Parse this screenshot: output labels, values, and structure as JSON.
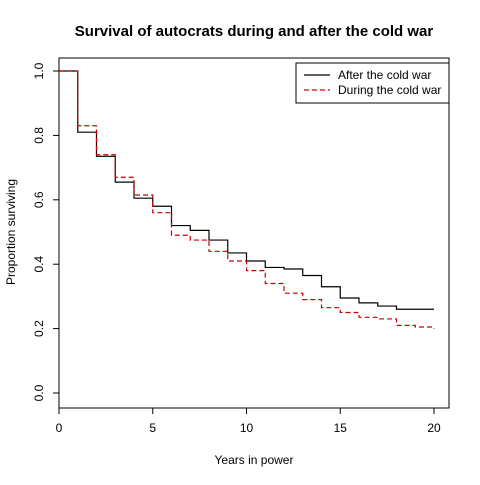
{
  "chart_data": {
    "type": "line",
    "title": "Survival of autocrats during and after the cold war",
    "xlabel": "Years in power",
    "ylabel": "Proportion surviving",
    "xlim": [
      0,
      20
    ],
    "ylim": [
      0,
      1
    ],
    "x_ticks": [
      0,
      5,
      10,
      15,
      20
    ],
    "y_ticks": [
      0.0,
      0.2,
      0.4,
      0.6,
      0.8,
      1.0
    ],
    "x_tick_labels": [
      "0",
      "5",
      "10",
      "15",
      "20"
    ],
    "y_tick_labels": [
      "0.0",
      "0.2",
      "0.4",
      "0.6",
      "0.8",
      "1.0"
    ],
    "grid": false,
    "legend_position": "top-right",
    "step": true,
    "series": [
      {
        "name": "After the cold war",
        "color": "#000000",
        "dash": "solid",
        "x": [
          0,
          1,
          2,
          3,
          4,
          5,
          6,
          7,
          8,
          9,
          10,
          11,
          12,
          13,
          14,
          15,
          16,
          17,
          18,
          19,
          20
        ],
        "y": [
          1.0,
          0.81,
          0.735,
          0.655,
          0.605,
          0.58,
          0.52,
          0.505,
          0.475,
          0.435,
          0.41,
          0.39,
          0.385,
          0.365,
          0.33,
          0.295,
          0.28,
          0.27,
          0.26,
          0.26,
          0.26
        ]
      },
      {
        "name": "During the cold war",
        "color": "#cc0000",
        "dash": "dashed",
        "x": [
          0,
          1,
          2,
          3,
          4,
          5,
          6,
          7,
          8,
          9,
          10,
          11,
          12,
          13,
          14,
          15,
          16,
          17,
          18,
          19,
          20
        ],
        "y": [
          1.0,
          0.83,
          0.74,
          0.67,
          0.615,
          0.56,
          0.49,
          0.475,
          0.44,
          0.41,
          0.38,
          0.34,
          0.31,
          0.29,
          0.265,
          0.25,
          0.235,
          0.23,
          0.21,
          0.205,
          0.2
        ]
      }
    ]
  }
}
